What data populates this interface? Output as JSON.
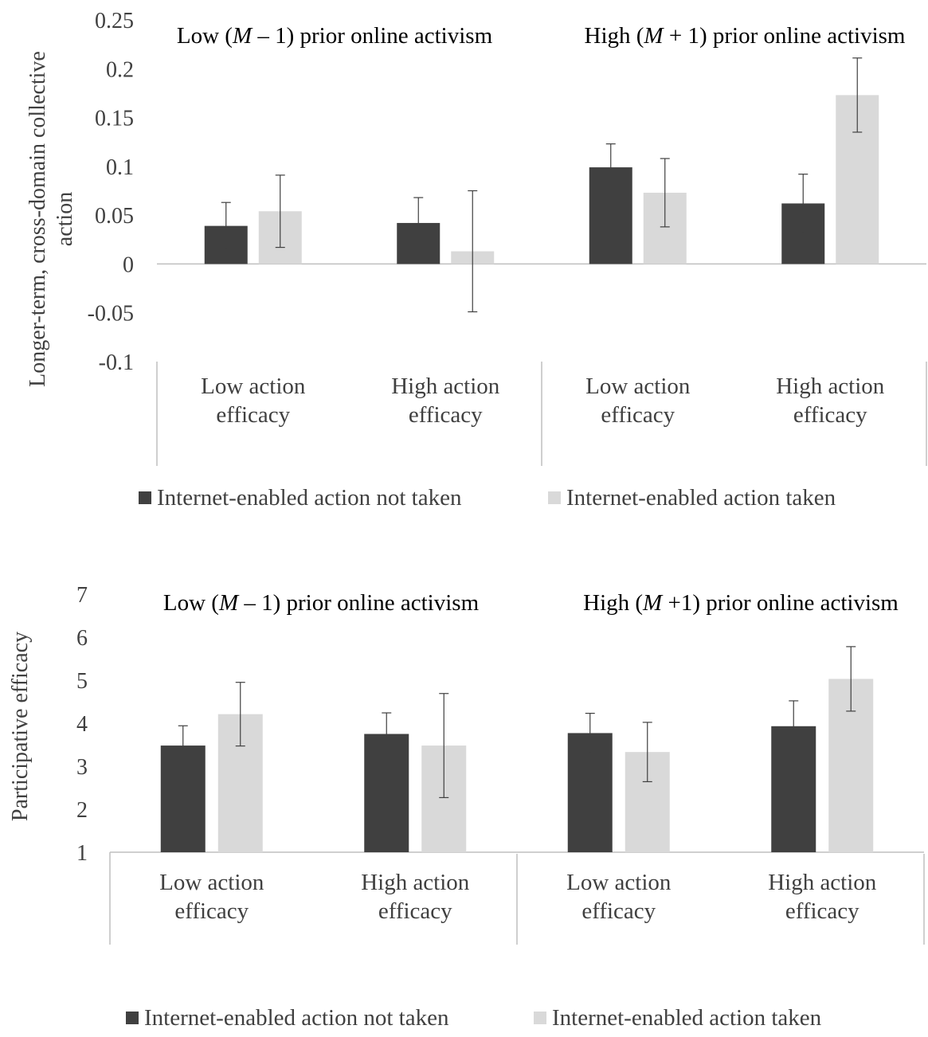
{
  "colors": {
    "not_taken": "#404040",
    "taken": "#d9d9d9",
    "axis": "#bfbfbf",
    "error_bar": "#404040"
  },
  "chart_data": [
    {
      "type": "bar",
      "ylabel": "Longer-term, cross-domain collective action",
      "ylabel_lines": [
        "Longer-term, cross-domain collective",
        "action"
      ],
      "ylim": [
        -0.1,
        0.25
      ],
      "ytick_values": [
        -0.1,
        -0.05,
        0,
        0.05,
        0.1,
        0.15,
        0.2,
        0.25
      ],
      "ytick_labels": [
        "-0.1",
        "-0.05",
        "0",
        "0.05",
        "0.1",
        "0.15",
        "0.2",
        "0.25"
      ],
      "panel_titles": [
        {
          "parts": [
            {
              "text": "Low ("
            },
            {
              "text": "M",
              "italic": true
            },
            {
              "text": " – 1) prior online activism"
            }
          ]
        },
        {
          "parts": [
            {
              "text": "High ("
            },
            {
              "text": "M",
              "italic": true
            },
            {
              "text": " + 1) prior online activism"
            }
          ]
        }
      ],
      "categories": [
        [
          "Low action",
          "efficacy"
        ],
        [
          "High action",
          "efficacy"
        ],
        [
          "Low action",
          "efficacy"
        ],
        [
          "High action",
          "efficacy"
        ]
      ],
      "series": [
        {
          "name": "Internet-enabled action not taken",
          "values": [
            0.039,
            0.042,
            0.099,
            0.062
          ],
          "errors": [
            0.024,
            0.026,
            0.024,
            0.03
          ]
        },
        {
          "name": "Internet-enabled action taken",
          "values": [
            0.054,
            0.013,
            0.073,
            0.173
          ],
          "errors": [
            0.037,
            0.062,
            0.035,
            0.038
          ]
        }
      ],
      "grid": false,
      "legend_position": "bottom"
    },
    {
      "type": "bar",
      "ylabel": "Participative efficacy",
      "ylim": [
        1,
        7
      ],
      "ytick_values": [
        1,
        2,
        3,
        4,
        5,
        6,
        7
      ],
      "ytick_labels": [
        "1",
        "2",
        "3",
        "4",
        "5",
        "6",
        "7"
      ],
      "panel_titles": [
        {
          "parts": [
            {
              "text": "Low ("
            },
            {
              "text": "M",
              "italic": true
            },
            {
              "text": " – 1) prior online activism"
            }
          ]
        },
        {
          "parts": [
            {
              "text": "High ("
            },
            {
              "text": "M",
              "italic": true
            },
            {
              "text": " +1) prior online activism"
            }
          ]
        }
      ],
      "categories": [
        [
          "Low action",
          "efficacy"
        ],
        [
          "High action",
          "efficacy"
        ],
        [
          "Low action",
          "efficacy"
        ],
        [
          "High action",
          "efficacy"
        ]
      ],
      "series": [
        {
          "name": "Internet-enabled action not taken",
          "values": [
            3.48,
            3.75,
            3.77,
            3.93
          ],
          "errors": [
            0.46,
            0.49,
            0.46,
            0.59
          ]
        },
        {
          "name": "Internet-enabled action taken",
          "values": [
            4.21,
            3.48,
            3.33,
            5.03
          ],
          "errors": [
            0.74,
            1.21,
            0.69,
            0.75
          ]
        }
      ],
      "grid": false,
      "legend_position": "bottom"
    }
  ]
}
